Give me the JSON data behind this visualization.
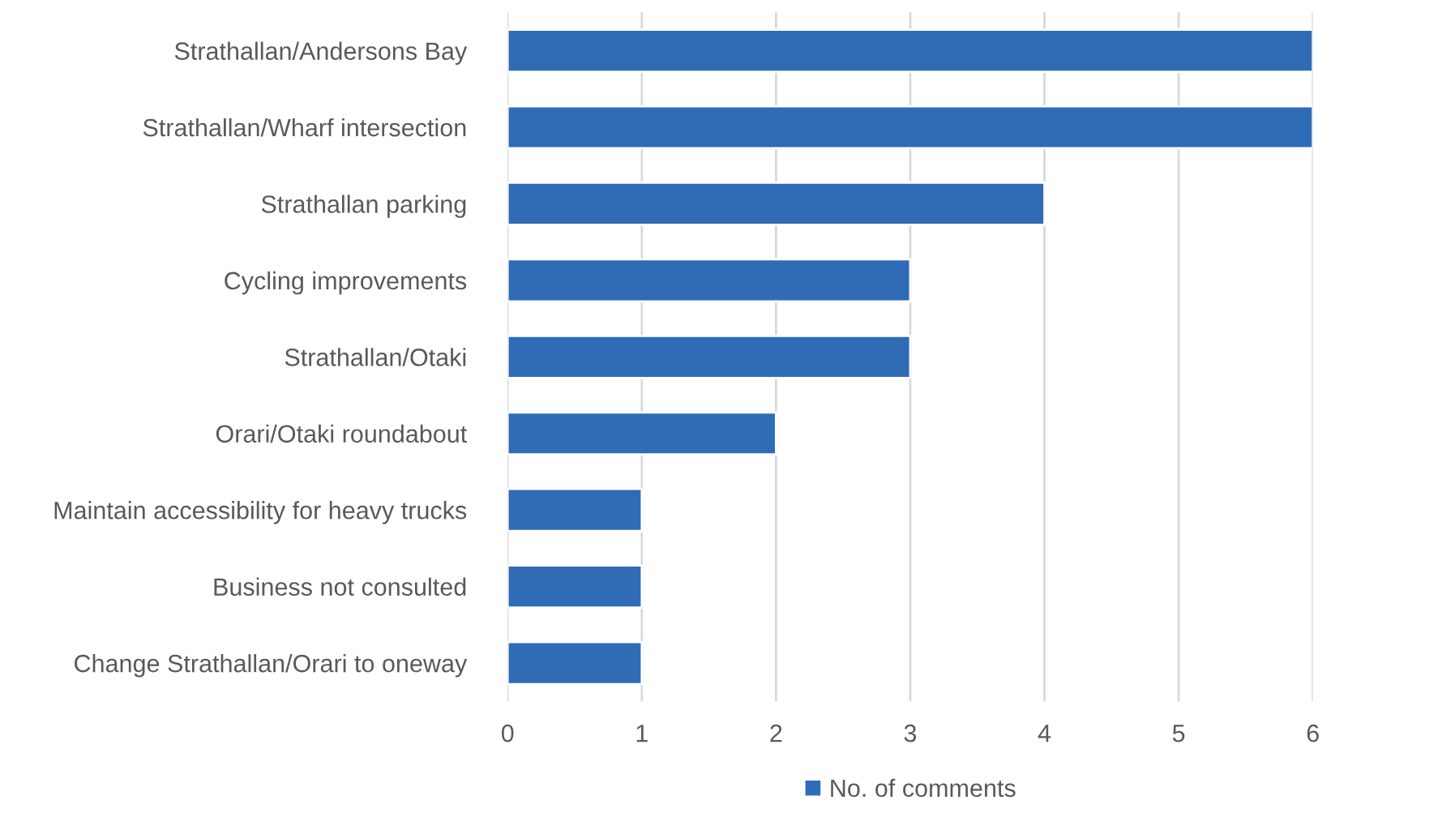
{
  "chart_data": {
    "type": "bar",
    "orientation": "horizontal",
    "categories": [
      "Strathallan/Andersons Bay",
      "Strathallan/Wharf intersection",
      "Strathallan parking",
      "Cycling improvements",
      "Strathallan/Otaki",
      "Orari/Otaki roundabout",
      "Maintain accessibility for heavy trucks",
      "Business not consulted",
      "Change Strathallan/Orari to oneway"
    ],
    "series": [
      {
        "name": "No. of comments",
        "color": "#2f6cb5",
        "values": [
          6,
          6,
          4,
          3,
          3,
          2,
          1,
          1,
          1
        ]
      }
    ],
    "xlim": [
      0,
      6
    ],
    "xticks": [
      0,
      1,
      2,
      3,
      4,
      5,
      6
    ],
    "grid": "x",
    "legend": "bottom"
  }
}
